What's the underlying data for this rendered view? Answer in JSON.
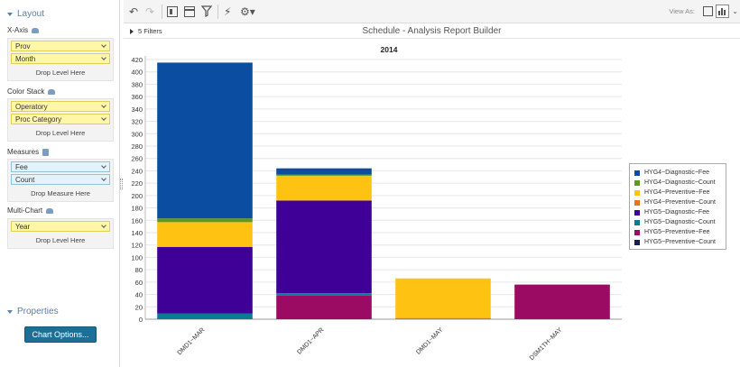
{
  "left_panel": {
    "layout_label": "Layout",
    "groups": [
      {
        "label": "X-Axis",
        "chips": [
          "Prov",
          "Month"
        ],
        "drop_text": "Drop Level Here",
        "chip_style": "y"
      },
      {
        "label": "Color Stack",
        "chips": [
          "Operatory",
          "Proc Category"
        ],
        "drop_text": "Drop Level Here",
        "chip_style": "y"
      },
      {
        "label": "Measures",
        "chips": [
          "Fee",
          "Count"
        ],
        "drop_text": "Drop Measure Here",
        "chip_style": "b"
      },
      {
        "label": "Multi-Chart",
        "chips": [
          "Year"
        ],
        "drop_text": "Drop Level Here",
        "chip_style": "y"
      }
    ],
    "properties_label": "Properties",
    "chart_options_label": "Chart Options..."
  },
  "toolbar": {
    "view_as_label": "View As:"
  },
  "header": {
    "filters_label": "5 Filters",
    "title": "Schedule - Analysis Report Builder"
  },
  "chart_data": {
    "type": "bar",
    "stacked": true,
    "title": "2014",
    "categories": [
      "DMD1~MAR",
      "DMD1~APR",
      "DMD1~MAY",
      "DSM1TH~MAY"
    ],
    "ylim": [
      0,
      420
    ],
    "yticks": [
      0,
      20,
      40,
      60,
      80,
      100,
      120,
      140,
      160,
      180,
      200,
      220,
      240,
      260,
      280,
      300,
      320,
      340,
      360,
      380,
      400,
      420
    ],
    "grid": true,
    "legend_position": "right",
    "series": [
      {
        "name": "HYG5~Preventive~Count",
        "color": "#1a1f4e",
        "values": [
          0,
          0,
          0,
          1
        ]
      },
      {
        "name": "HYG5~Preventive~Fee",
        "color": "#9b0a63",
        "values": [
          0,
          38,
          0,
          55
        ]
      },
      {
        "name": "HYG5~Diagnostic~Count",
        "color": "#0c7a93",
        "values": [
          9,
          4,
          0,
          0
        ]
      },
      {
        "name": "HYG5~Diagnostic~Fee",
        "color": "#3f0098",
        "values": [
          108,
          150,
          0,
          0
        ]
      },
      {
        "name": "HYG4~Preventive~Count",
        "color": "#e8731a",
        "values": [
          0,
          0,
          2,
          0
        ]
      },
      {
        "name": "HYG4~Preventive~Fee",
        "color": "#fec312",
        "values": [
          40,
          40,
          64,
          0
        ]
      },
      {
        "name": "HYG4~Diagnostic~Count",
        "color": "#5b9a1e",
        "values": [
          6,
          2,
          0,
          0
        ]
      },
      {
        "name": "HYG4~Diagnostic~Fee",
        "color": "#0b4da0",
        "values": [
          252,
          10,
          0,
          0
        ]
      }
    ],
    "legend_order": [
      "HYG4~Diagnostic~Fee",
      "HYG4~Diagnostic~Count",
      "HYG4~Preventive~Fee",
      "HYG4~Preventive~Count",
      "HYG5~Diagnostic~Fee",
      "HYG5~Diagnostic~Count",
      "HYG5~Preventive~Fee",
      "HYG5~Preventive~Count"
    ]
  }
}
